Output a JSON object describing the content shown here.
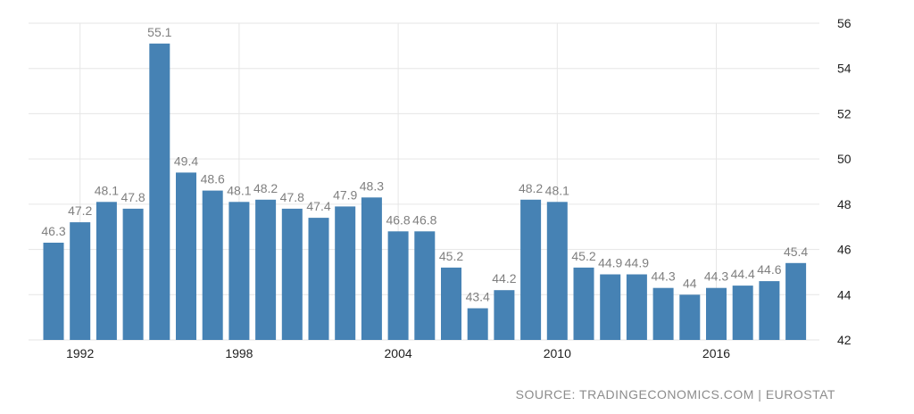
{
  "chart_data": {
    "type": "bar",
    "title": "",
    "xlabel": "",
    "ylabel": "",
    "x": [
      1991,
      1992,
      1993,
      1994,
      1995,
      1996,
      1997,
      1998,
      1999,
      2000,
      2001,
      2002,
      2003,
      2004,
      2005,
      2006,
      2007,
      2008,
      2009,
      2010,
      2011,
      2012,
      2013,
      2014,
      2015,
      2016,
      2017,
      2018,
      2019
    ],
    "values": [
      46.3,
      47.2,
      48.1,
      47.8,
      55.1,
      49.4,
      48.6,
      48.1,
      48.2,
      47.8,
      47.4,
      47.9,
      48.3,
      46.8,
      46.8,
      45.2,
      43.4,
      44.2,
      48.2,
      48.1,
      45.2,
      44.9,
      44.9,
      44.3,
      44.0,
      44.3,
      44.4,
      44.6,
      45.4
    ],
    "value_labels": [
      "46.3",
      "47.2",
      "48.1",
      "47.8",
      "55.1",
      "49.4",
      "48.6",
      "48.1",
      "48.2",
      "47.8",
      "47.4",
      "47.9",
      "48.3",
      "46.8",
      "46.8",
      "45.2",
      "43.4",
      "44.2",
      "48.2",
      "48.1",
      "45.2",
      "44.9",
      "44.9",
      "44.3",
      "44",
      "44.3",
      "44.4",
      "44.6",
      "45.4"
    ],
    "x_tick_labels": [
      "1992",
      "1998",
      "2004",
      "2010",
      "2016"
    ],
    "x_tick_years": [
      1992,
      1998,
      2004,
      2010,
      2016
    ],
    "y_ticks": [
      42,
      44,
      46,
      48,
      50,
      52,
      54,
      56
    ],
    "ylim": [
      42,
      56
    ],
    "y_axis_side": "right",
    "grid": true,
    "bar_color": "#4682b4",
    "label_color": "#7f7f7f"
  },
  "source": "SOURCE: TRADINGECONOMICS.COM | EUROSTAT"
}
